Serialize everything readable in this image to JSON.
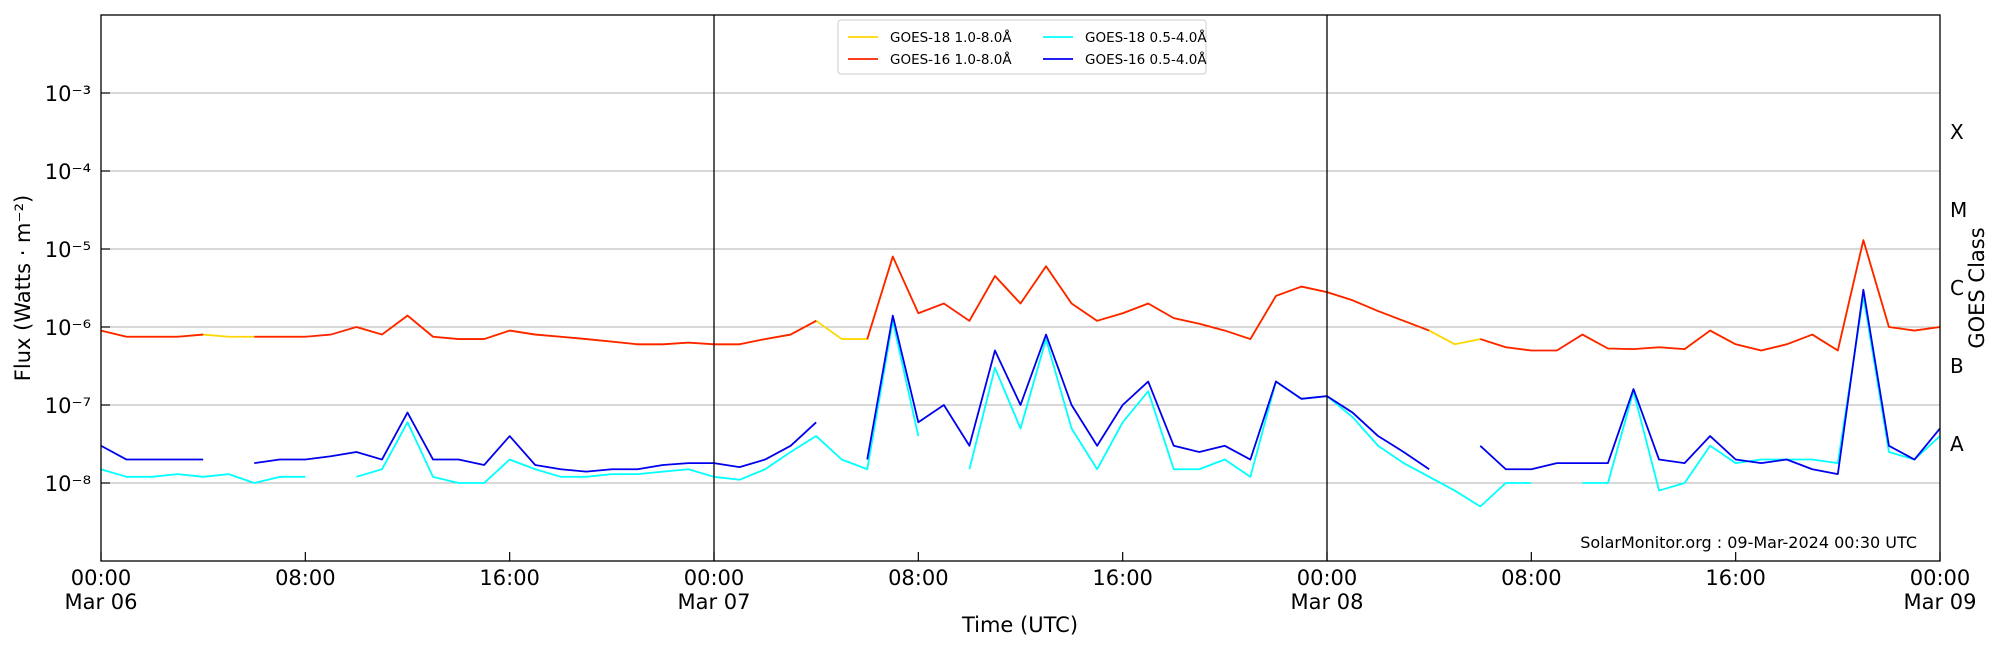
{
  "chart_data": {
    "type": "line",
    "xlabel": "Time (UTC)",
    "ylabel": "Flux (Watts · m⁻²)",
    "y2label": "GOES Class",
    "annotation": "SolarMonitor.org : 09-Mar-2024 00:30 UTC",
    "log_y": true,
    "grid": true,
    "legend": "upper center",
    "xlim": [
      0,
      72
    ],
    "xticks": [
      {
        "value": 0,
        "label": "00:00\nMar 06"
      },
      {
        "value": 8,
        "label": "08:00"
      },
      {
        "value": 16,
        "label": "16:00"
      },
      {
        "value": 24,
        "label": "00:00\nMar 07"
      },
      {
        "value": 32,
        "label": "08:00"
      },
      {
        "value": 40,
        "label": "16:00"
      },
      {
        "value": 48,
        "label": "00:00\nMar 08"
      },
      {
        "value": 56,
        "label": "08:00"
      },
      {
        "value": 64,
        "label": "16:00"
      },
      {
        "value": 72,
        "label": "00:00\nMar 09"
      }
    ],
    "vlines": [
      24,
      48
    ],
    "ylim": [
      1e-09,
      0.01
    ],
    "yticks": [
      {
        "value": 1e-08,
        "label": "10⁻⁸"
      },
      {
        "value": 1e-07,
        "label": "10⁻⁷"
      },
      {
        "value": 1e-06,
        "label": "10⁻⁶"
      },
      {
        "value": 1e-05,
        "label": "10⁻⁵"
      },
      {
        "value": 0.0001,
        "label": "10⁻⁴"
      },
      {
        "value": 0.001,
        "label": "10⁻³"
      }
    ],
    "y2lim": [
      1e-09,
      0.01
    ],
    "y2ticks": [
      {
        "value": 3.16e-08,
        "label": "A"
      },
      {
        "value": 3.16e-07,
        "label": "B"
      },
      {
        "value": 3.16e-06,
        "label": "C"
      },
      {
        "value": 3.16e-05,
        "label": "M"
      },
      {
        "value": 0.000316,
        "label": "X"
      }
    ],
    "x": [
      0,
      1,
      2,
      3,
      4,
      5,
      6,
      7,
      8,
      9,
      10,
      11,
      12,
      13,
      14,
      15,
      16,
      17,
      18,
      19,
      20,
      21,
      22,
      23,
      24,
      25,
      26,
      27,
      28,
      29,
      30,
      31,
      32,
      33,
      34,
      35,
      36,
      37,
      38,
      39,
      40,
      41,
      42,
      43,
      44,
      45,
      46,
      47,
      48,
      49,
      50,
      51,
      52,
      53,
      54,
      55,
      56,
      57,
      58,
      59,
      60,
      61,
      62,
      63,
      64,
      65,
      66,
      67,
      68,
      69,
      70,
      71,
      72
    ],
    "series": [
      {
        "name": "GOES-18 1.0-8.0Å",
        "color": "#ffd700",
        "values": [
          9e-07,
          7.5e-07,
          7.5e-07,
          7.5e-07,
          8e-07,
          7.5e-07,
          7.5e-07,
          7.5e-07,
          7.5e-07,
          null,
          1e-06,
          8e-07,
          1.4e-06,
          7.5e-07,
          7e-07,
          7e-07,
          9e-07,
          8e-07,
          7.5e-07,
          7e-07,
          6.5e-07,
          6e-07,
          6e-07,
          6.3e-07,
          6e-07,
          6e-07,
          7e-07,
          8e-07,
          1.2e-06,
          7e-07,
          7e-07,
          8e-06,
          1.5e-06,
          null,
          1.2e-06,
          4.5e-06,
          2e-06,
          6e-06,
          2e-06,
          1.2e-06,
          1.5e-06,
          2e-06,
          1.3e-06,
          1.1e-06,
          9e-07,
          7e-07,
          2.5e-06,
          3.3e-06,
          2.8e-06,
          2.2e-06,
          1.6e-06,
          1.2e-06,
          9e-07,
          6e-07,
          7e-07,
          5.5e-07,
          5e-07,
          null,
          8e-07,
          5.3e-07,
          5.2e-07,
          5.5e-07,
          5.2e-07,
          9e-07,
          6e-07,
          5e-07,
          6e-07,
          8e-07,
          5e-07,
          1.3e-05,
          1e-06,
          9e-07,
          1e-06
        ]
      },
      {
        "name": "GOES-16 1.0-8.0Å",
        "color": "#ff2200",
        "values": [
          9e-07,
          7.5e-07,
          7.5e-07,
          7.5e-07,
          8e-07,
          null,
          7.5e-07,
          7.5e-07,
          7.5e-07,
          8e-07,
          1e-06,
          8e-07,
          1.4e-06,
          7.5e-07,
          7e-07,
          7e-07,
          9e-07,
          8e-07,
          7.5e-07,
          7e-07,
          6.5e-07,
          6e-07,
          6e-07,
          6.3e-07,
          6e-07,
          6e-07,
          7e-07,
          8e-07,
          1.2e-06,
          null,
          7e-07,
          8e-06,
          1.5e-06,
          2e-06,
          1.2e-06,
          4.5e-06,
          2e-06,
          6e-06,
          2e-06,
          1.2e-06,
          1.5e-06,
          2e-06,
          1.3e-06,
          1.1e-06,
          9e-07,
          7e-07,
          2.5e-06,
          3.3e-06,
          2.8e-06,
          2.2e-06,
          1.6e-06,
          1.2e-06,
          9e-07,
          null,
          7e-07,
          5.5e-07,
          5e-07,
          5e-07,
          8e-07,
          5.3e-07,
          5.2e-07,
          5.5e-07,
          5.2e-07,
          9e-07,
          6e-07,
          5e-07,
          6e-07,
          8e-07,
          5e-07,
          1.3e-05,
          1e-06,
          9e-07,
          1e-06
        ]
      },
      {
        "name": "GOES-18 0.5-4.0Å",
        "color": "#00ffff",
        "values": [
          1.5e-08,
          1.2e-08,
          1.2e-08,
          1.3e-08,
          1.2e-08,
          1.3e-08,
          1e-08,
          1.2e-08,
          1.2e-08,
          null,
          1.2e-08,
          1.5e-08,
          6e-08,
          1.2e-08,
          1e-08,
          1e-08,
          2e-08,
          1.5e-08,
          1.2e-08,
          1.2e-08,
          1.3e-08,
          1.3e-08,
          1.4e-08,
          1.5e-08,
          1.2e-08,
          1.1e-08,
          1.5e-08,
          2.5e-08,
          4e-08,
          2e-08,
          1.5e-08,
          1.2e-06,
          4e-08,
          null,
          1.5e-08,
          3e-07,
          5e-08,
          7e-07,
          5e-08,
          1.5e-08,
          6e-08,
          1.5e-07,
          1.5e-08,
          1.5e-08,
          2e-08,
          1.2e-08,
          2e-07,
          1.2e-07,
          1.3e-07,
          7e-08,
          3e-08,
          1.8e-08,
          1.2e-08,
          8e-09,
          5e-09,
          1e-08,
          1e-08,
          null,
          1e-08,
          1e-08,
          1.5e-07,
          8e-09,
          1e-08,
          3e-08,
          1.8e-08,
          2e-08,
          2e-08,
          2e-08,
          1.8e-08,
          2.5e-06,
          2.5e-08,
          2e-08,
          4e-08
        ]
      },
      {
        "name": "GOES-16 0.5-4.0Å",
        "color": "#0000ee",
        "values": [
          3e-08,
          2e-08,
          2e-08,
          2e-08,
          2e-08,
          null,
          1.8e-08,
          2e-08,
          2e-08,
          2.2e-08,
          2.5e-08,
          2e-08,
          8e-08,
          2e-08,
          2e-08,
          1.7e-08,
          4e-08,
          1.7e-08,
          1.5e-08,
          1.4e-08,
          1.5e-08,
          1.5e-08,
          1.7e-08,
          1.8e-08,
          1.8e-08,
          1.6e-08,
          2e-08,
          3e-08,
          6e-08,
          null,
          2e-08,
          1.4e-06,
          6e-08,
          1e-07,
          3e-08,
          5e-07,
          1e-07,
          8e-07,
          1e-07,
          3e-08,
          1e-07,
          2e-07,
          3e-08,
          2.5e-08,
          3e-08,
          2e-08,
          2e-07,
          1.2e-07,
          1.3e-07,
          8e-08,
          4e-08,
          2.5e-08,
          1.5e-08,
          null,
          3e-08,
          1.5e-08,
          1.5e-08,
          1.8e-08,
          1.8e-08,
          1.8e-08,
          1.6e-07,
          2e-08,
          1.8e-08,
          4e-08,
          2e-08,
          1.8e-08,
          2e-08,
          1.5e-08,
          1.3e-08,
          3e-06,
          3e-08,
          2e-08,
          5e-08
        ]
      }
    ]
  }
}
